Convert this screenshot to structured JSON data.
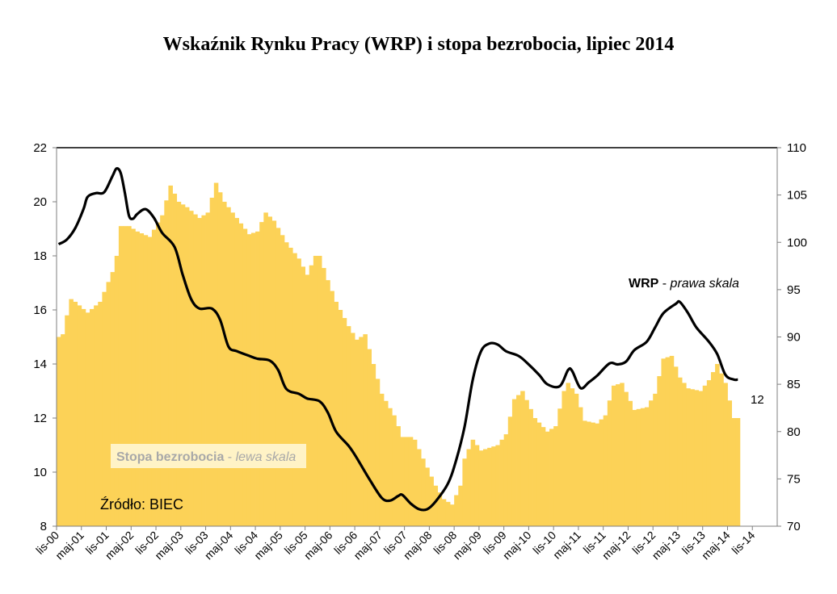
{
  "chart_data": {
    "type": "bar+line",
    "title": "Wskaźnik Rynku Pracy (WRP) i stopa bezrobocia, lipiec 2014",
    "source_label": "Źródło: BIEC",
    "x_tick_labels": [
      "lis-00",
      "maj-01",
      "lis-01",
      "maj-02",
      "lis-02",
      "maj-03",
      "lis-03",
      "maj-04",
      "lis-04",
      "maj-05",
      "lis-05",
      "maj-06",
      "lis-06",
      "maj-07",
      "lis-07",
      "maj-08",
      "lis-08",
      "maj-09",
      "lis-09",
      "maj-10",
      "lis-10",
      "maj-11",
      "lis-11",
      "maj-12",
      "lis-12",
      "maj-13",
      "lis-13",
      "maj-14",
      "lis-14"
    ],
    "left_axis": {
      "ylim": [
        8,
        22
      ],
      "ticks": [
        8,
        10,
        12,
        14,
        16,
        18,
        20,
        22
      ]
    },
    "right_axis": {
      "ylim": [
        70,
        110
      ],
      "ticks": [
        70,
        75,
        80,
        85,
        90,
        95,
        100,
        105,
        110
      ]
    },
    "annotation_last_value": "12",
    "colors": {
      "bars": "#fcd257",
      "line": "#000000",
      "frame": "#7f7f7f"
    },
    "series": [
      {
        "name": "Stopa bezrobocia",
        "legend_note": "lewa skala",
        "type": "bar",
        "axis": "left",
        "key_points": [
          [
            "2000-11",
            15.0
          ],
          [
            "2000-12",
            15.1
          ],
          [
            "2001-01",
            15.8
          ],
          [
            "2001-02",
            16.4
          ],
          [
            "2001-03",
            16.3
          ],
          [
            "2001-06",
            15.9
          ],
          [
            "2001-09",
            16.3
          ],
          [
            "2001-12",
            17.4
          ],
          [
            "2002-01",
            18.0
          ],
          [
            "2002-02",
            19.1
          ],
          [
            "2002-04",
            19.1
          ],
          [
            "2002-06",
            18.9
          ],
          [
            "2002-09",
            18.7
          ],
          [
            "2002-12",
            19.5
          ],
          [
            "2003-02",
            20.6
          ],
          [
            "2003-04",
            20.0
          ],
          [
            "2003-06",
            19.8
          ],
          [
            "2003-09",
            19.4
          ],
          [
            "2003-11",
            19.6
          ],
          [
            "2004-01",
            20.7
          ],
          [
            "2004-03",
            20.0
          ],
          [
            "2004-06",
            19.4
          ],
          [
            "2004-09",
            18.8
          ],
          [
            "2004-11",
            18.9
          ],
          [
            "2005-01",
            19.6
          ],
          [
            "2005-03",
            19.3
          ],
          [
            "2005-06",
            18.5
          ],
          [
            "2005-09",
            17.9
          ],
          [
            "2005-11",
            17.3
          ],
          [
            "2006-01",
            18.0
          ],
          [
            "2006-02",
            18.0
          ],
          [
            "2006-04",
            17.1
          ],
          [
            "2006-06",
            16.3
          ],
          [
            "2006-09",
            15.4
          ],
          [
            "2006-11",
            14.9
          ],
          [
            "2007-01",
            15.1
          ],
          [
            "2007-03",
            14.0
          ],
          [
            "2007-05",
            12.9
          ],
          [
            "2007-08",
            12.1
          ],
          [
            "2007-10",
            11.3
          ],
          [
            "2007-12",
            11.3
          ],
          [
            "2008-01",
            11.2
          ],
          [
            "2008-03",
            10.5
          ],
          [
            "2008-06",
            9.5
          ],
          [
            "2008-08",
            9.0
          ],
          [
            "2008-10",
            8.8
          ],
          [
            "2008-12",
            9.5
          ],
          [
            "2009-01",
            10.5
          ],
          [
            "2009-03",
            11.2
          ],
          [
            "2009-05",
            10.8
          ],
          [
            "2009-09",
            11.0
          ],
          [
            "2009-11",
            11.4
          ],
          [
            "2010-01",
            12.7
          ],
          [
            "2010-03",
            13.0
          ],
          [
            "2010-06",
            12.0
          ],
          [
            "2010-09",
            11.5
          ],
          [
            "2010-11",
            11.7
          ],
          [
            "2011-01",
            13.0
          ],
          [
            "2011-02",
            13.3
          ],
          [
            "2011-04",
            12.9
          ],
          [
            "2011-06",
            11.9
          ],
          [
            "2011-09",
            11.8
          ],
          [
            "2011-11",
            12.1
          ],
          [
            "2012-01",
            13.2
          ],
          [
            "2012-03",
            13.3
          ],
          [
            "2012-06",
            12.3
          ],
          [
            "2012-09",
            12.4
          ],
          [
            "2012-11",
            12.9
          ],
          [
            "2013-01",
            14.2
          ],
          [
            "2013-03",
            14.3
          ],
          [
            "2013-05",
            13.5
          ],
          [
            "2013-07",
            13.1
          ],
          [
            "2013-10",
            13.0
          ],
          [
            "2013-12",
            13.4
          ],
          [
            "2014-02",
            14.0
          ],
          [
            "2014-04",
            13.3
          ],
          [
            "2014-06",
            12.0
          ],
          [
            "2014-07",
            12.0
          ]
        ]
      },
      {
        "name": "WRP",
        "legend_note": "prawa skala",
        "type": "line",
        "axis": "right",
        "key_points": [
          [
            "2000-11",
            99.8
          ],
          [
            "2001-01",
            100.3
          ],
          [
            "2001-03",
            101.5
          ],
          [
            "2001-05",
            103.5
          ],
          [
            "2001-06",
            104.8
          ],
          [
            "2001-08",
            105.2
          ],
          [
            "2001-10",
            105.3
          ],
          [
            "2001-12",
            107.0
          ],
          [
            "2002-01",
            107.8
          ],
          [
            "2002-02",
            107.3
          ],
          [
            "2002-03",
            105.2
          ],
          [
            "2002-04",
            102.8
          ],
          [
            "2002-05",
            102.5
          ],
          [
            "2002-06",
            103.0
          ],
          [
            "2002-08",
            103.5
          ],
          [
            "2002-10",
            102.6
          ],
          [
            "2002-12",
            101.0
          ],
          [
            "2003-03",
            99.5
          ],
          [
            "2003-05",
            96.5
          ],
          [
            "2003-07",
            94.0
          ],
          [
            "2003-09",
            93.0
          ],
          [
            "2003-12",
            93.0
          ],
          [
            "2004-02",
            91.8
          ],
          [
            "2004-04",
            89.0
          ],
          [
            "2004-06",
            88.5
          ],
          [
            "2004-09",
            88.0
          ],
          [
            "2004-11",
            87.7
          ],
          [
            "2005-02",
            87.5
          ],
          [
            "2005-04",
            86.5
          ],
          [
            "2005-06",
            84.5
          ],
          [
            "2005-09",
            84.0
          ],
          [
            "2005-11",
            83.5
          ],
          [
            "2006-02",
            83.2
          ],
          [
            "2006-04",
            82.0
          ],
          [
            "2006-06",
            80.0
          ],
          [
            "2006-09",
            78.5
          ],
          [
            "2006-11",
            77.2
          ],
          [
            "2007-02",
            75.0
          ],
          [
            "2007-05",
            73.0
          ],
          [
            "2007-07",
            72.7
          ],
          [
            "2007-09",
            73.2
          ],
          [
            "2007-10",
            73.3
          ],
          [
            "2007-12",
            72.4
          ],
          [
            "2008-02",
            71.8
          ],
          [
            "2008-04",
            71.8
          ],
          [
            "2008-06",
            72.6
          ],
          [
            "2008-09",
            74.5
          ],
          [
            "2008-11",
            77.0
          ],
          [
            "2009-01",
            80.5
          ],
          [
            "2009-03",
            85.5
          ],
          [
            "2009-05",
            88.5
          ],
          [
            "2009-07",
            89.3
          ],
          [
            "2009-09",
            89.2
          ],
          [
            "2009-11",
            88.5
          ],
          [
            "2010-02",
            88.0
          ],
          [
            "2010-04",
            87.3
          ],
          [
            "2010-07",
            86.0
          ],
          [
            "2010-09",
            85.0
          ],
          [
            "2010-12",
            84.8
          ],
          [
            "2011-02",
            86.5
          ],
          [
            "2011-03",
            86.4
          ],
          [
            "2011-05",
            84.6
          ],
          [
            "2011-07",
            85.2
          ],
          [
            "2011-09",
            85.9
          ],
          [
            "2011-12",
            87.2
          ],
          [
            "2012-02",
            87.1
          ],
          [
            "2012-04",
            87.4
          ],
          [
            "2012-06",
            88.6
          ],
          [
            "2012-09",
            89.5
          ],
          [
            "2012-11",
            91.0
          ],
          [
            "2013-01",
            92.5
          ],
          [
            "2013-04",
            93.5
          ],
          [
            "2013-05",
            93.7
          ],
          [
            "2013-07",
            92.5
          ],
          [
            "2013-09",
            91.0
          ],
          [
            "2013-12",
            89.5
          ],
          [
            "2014-02",
            88.2
          ],
          [
            "2014-04",
            86.0
          ],
          [
            "2014-06",
            85.5
          ],
          [
            "2014-07",
            85.5
          ]
        ]
      }
    ]
  }
}
